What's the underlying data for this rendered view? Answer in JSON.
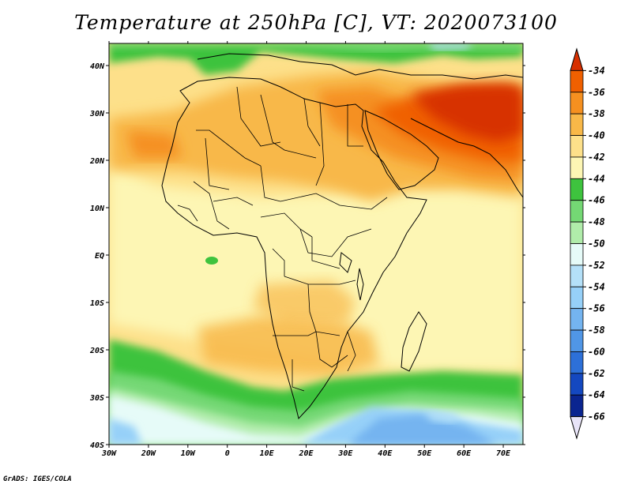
{
  "title": "Temperature at 250hPa [C], VT: 2020073100",
  "footer": "GrADS: IGES/COLA",
  "map": {
    "lon_range": [
      -30,
      75
    ],
    "lat_range": [
      -40,
      45
    ],
    "lon_ticks": [
      "30W",
      "20W",
      "10W",
      "0",
      "10E",
      "20E",
      "30E",
      "40E",
      "50E",
      "60E",
      "70E"
    ],
    "lat_ticks": [
      "40N",
      "30N",
      "20N",
      "10N",
      "EQ",
      "10S",
      "20S",
      "30S",
      "40S"
    ]
  },
  "colorbar": {
    "labels": [
      "-34",
      "-36",
      "-38",
      "-40",
      "-42",
      "-44",
      "-46",
      "-48",
      "-50",
      "-52",
      "-54",
      "-56",
      "-58",
      "-60",
      "-62",
      "-64",
      "-66"
    ],
    "colors": [
      "#d73000",
      "#f06000",
      "#f59020",
      "#f8b848",
      "#fde08a",
      "#fdf6b4",
      "#3ec33e",
      "#74d874",
      "#b0ecaa",
      "#e6fbf8",
      "#b4e0f8",
      "#96d0f8",
      "#74b4f0",
      "#5096e6",
      "#2d70d8",
      "#1448c0",
      "#0a2590",
      "#0a1270"
    ]
  }
}
